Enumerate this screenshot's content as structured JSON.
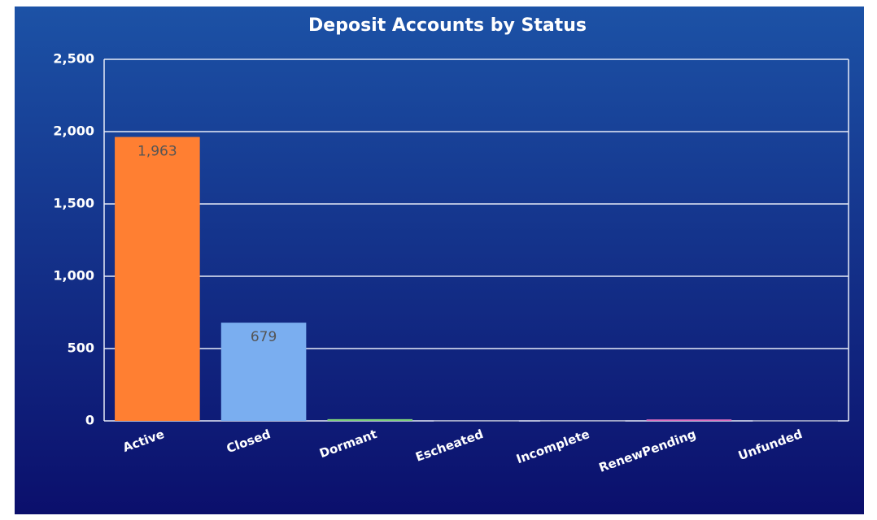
{
  "chart_data": {
    "type": "bar",
    "title": "Deposit Accounts by Status",
    "categories": [
      "Active",
      "Closed",
      "Dormant",
      "Escheated",
      "Incomplete",
      "RenewPending",
      "Unfunded"
    ],
    "values": [
      1963,
      679,
      12,
      1,
      1,
      10,
      2
    ],
    "value_labels": [
      "1,963",
      "679",
      null,
      null,
      null,
      null,
      null
    ],
    "colors": [
      "#ff7f32",
      "#7aaef0",
      "#7ed07a",
      "#8a8fb0",
      "#8a8fb0",
      "#e070c0",
      "#8a8fb0"
    ],
    "ylim": [
      0,
      2500
    ],
    "yticks": [
      0,
      500,
      {
        "value": 1000,
        "label": "1,000"
      },
      {
        "value": 1500,
        "label": "1,500"
      },
      {
        "value": 2000,
        "label": "2,000"
      },
      {
        "value": 2500,
        "label": "2,500"
      }
    ],
    "grid": true
  }
}
